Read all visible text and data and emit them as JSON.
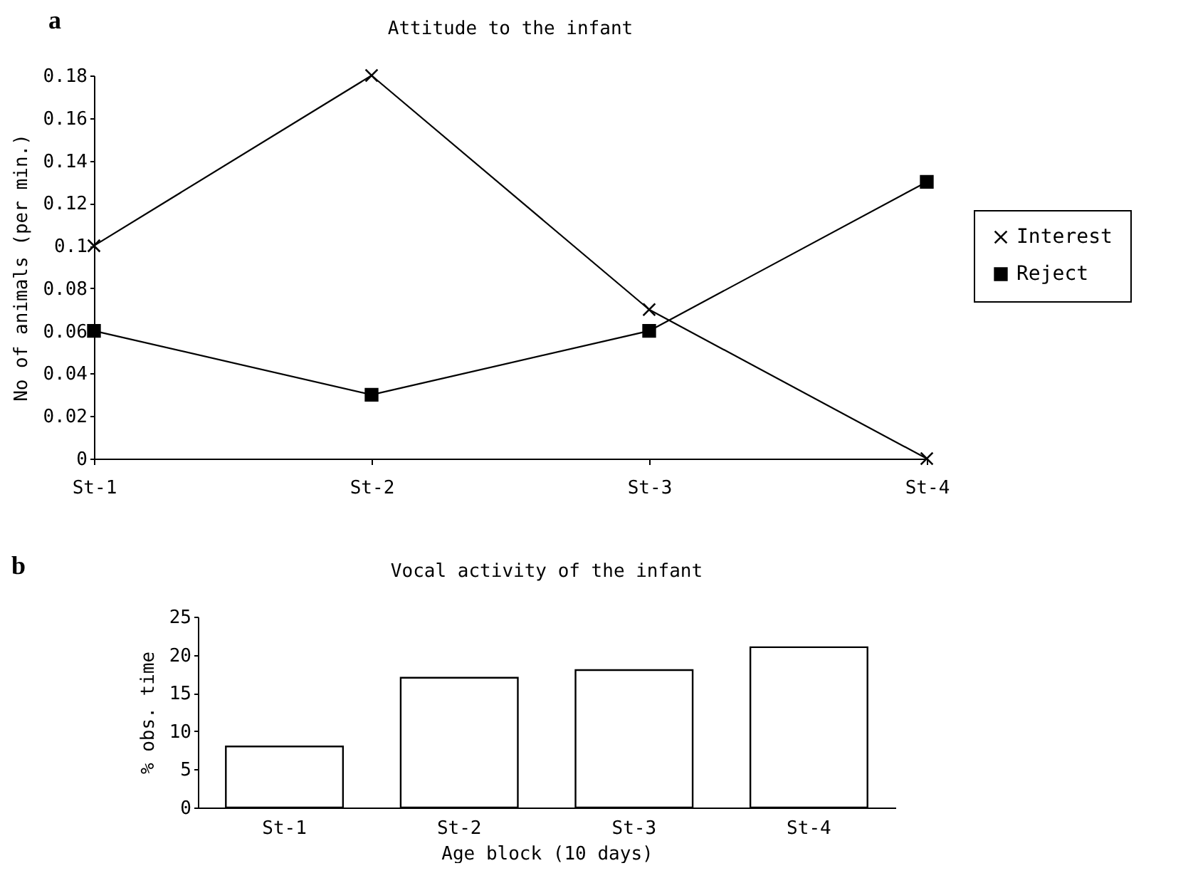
{
  "chart_data": [
    {
      "type": "line",
      "title": "Attitude to the infant",
      "ylabel": "No of animals (per min.)",
      "annotations": [
        "a"
      ],
      "categories": [
        "St-1",
        "St-2",
        "St-3",
        "St-4"
      ],
      "series": [
        {
          "name": "Interest",
          "color": "#000000",
          "marker": "cross",
          "values": [
            0.1,
            0.18,
            0.07,
            0
          ]
        },
        {
          "name": "Reject",
          "color": "#000000",
          "marker": "square",
          "values": [
            0.06,
            0.03,
            0.06,
            0.13
          ]
        }
      ],
      "ylim": [
        0,
        0.18
      ],
      "yticks": [
        0,
        0.02,
        0.04,
        0.06,
        0.08,
        0.1,
        0.12,
        0.14,
        0.16,
        0.18
      ],
      "grid": false,
      "legend": "right"
    },
    {
      "type": "bar",
      "title": "Vocal activity of the infant",
      "xlabel": "Age block (10 days)",
      "ylabel": "% obs. time",
      "annotations": [
        "b"
      ],
      "categories": [
        "St-1",
        "St-2",
        "St-3",
        "St-4"
      ],
      "values": [
        8,
        17,
        18,
        21
      ],
      "color": "#ffffff",
      "ylim": [
        0,
        25
      ],
      "yticks": [
        0,
        5,
        10,
        15,
        20,
        25
      ],
      "grid": false
    }
  ]
}
